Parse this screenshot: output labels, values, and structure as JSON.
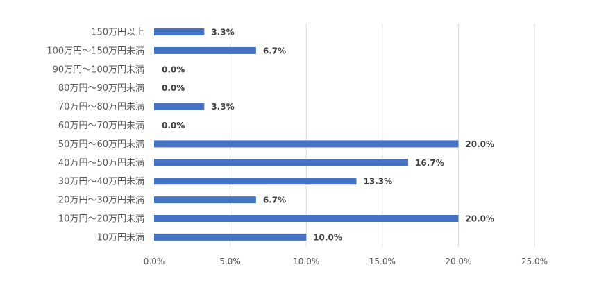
{
  "chart_data": {
    "type": "bar",
    "orientation": "horizontal",
    "title": "",
    "xlabel": "",
    "ylabel": "",
    "xlim": [
      0,
      25
    ],
    "x_ticks": [
      0,
      5,
      10,
      15,
      20,
      25
    ],
    "x_tick_labels": [
      "0.0%",
      "5.0%",
      "10.0%",
      "15.0%",
      "20.0%",
      "25.0%"
    ],
    "grid": true,
    "legend": "none",
    "bar_color": "#4472c4",
    "categories": [
      "150万円以上",
      "100万円～150万円未満",
      "90万円～100万円未満",
      "80万円～90万円未満",
      "70万円～80万円未満",
      "60万円～70万円未満",
      "50万円～60万円未満",
      "40万円～50万円未満",
      "30万円～40万円未満",
      "20万円～30万円未満",
      "10万円～20万円未満",
      "10万円未満"
    ],
    "values": [
      3.3,
      6.7,
      0.0,
      0.0,
      3.3,
      0.0,
      20.0,
      16.7,
      13.3,
      6.7,
      20.0,
      10.0
    ],
    "value_labels": [
      "3.3%",
      "6.7%",
      "0.0%",
      "0.0%",
      "3.3%",
      "0.0%",
      "20.0%",
      "16.7%",
      "13.3%",
      "6.7%",
      "20.0%",
      "10.0%"
    ]
  }
}
